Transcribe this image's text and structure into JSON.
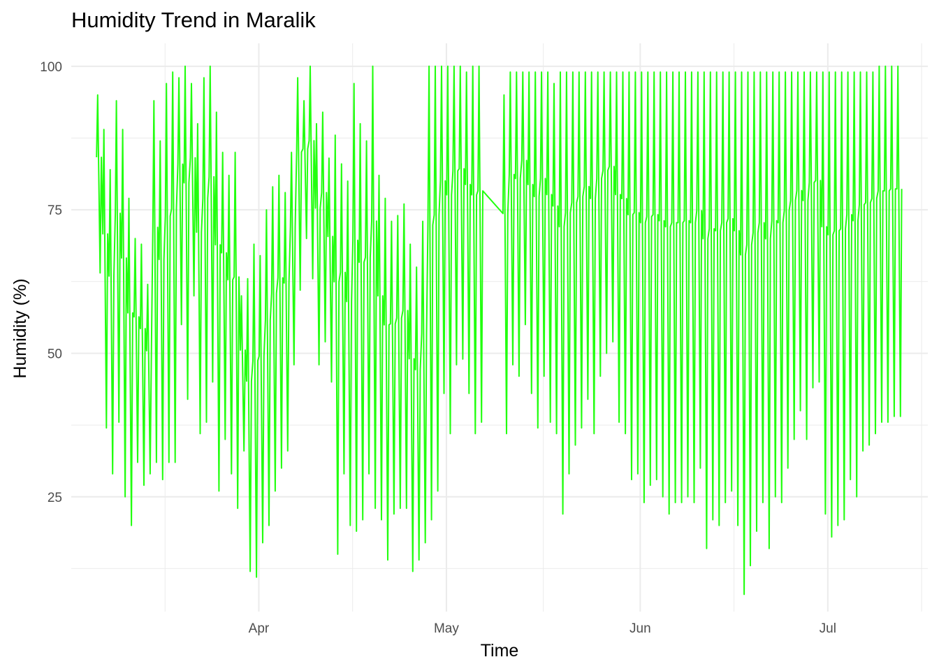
{
  "colors": {
    "line": "#21ff0e",
    "grid": "#ebebeb",
    "tick_text": "#4d4d4d"
  },
  "chart_data": {
    "type": "line",
    "title": "Humidity Trend in Maralik",
    "xlabel": "Time",
    "ylabel": "Humidity (%)",
    "x_range": [
      "2023-03-02",
      "2023-07-17"
    ],
    "ylim": [
      5,
      104
    ],
    "x_ticks": [
      {
        "date": "2023-04-01",
        "label": "Apr"
      },
      {
        "date": "2023-05-01",
        "label": "May"
      },
      {
        "date": "2023-06-01",
        "label": "Jun"
      },
      {
        "date": "2023-07-01",
        "label": "Jul"
      }
    ],
    "y_ticks": [
      25,
      50,
      75,
      100
    ],
    "grid": true,
    "legend": "none",
    "series": [
      {
        "color": "#21ff0e",
        "x": [
          "2023-03-06",
          "2023-03-07",
          "2023-03-08",
          "2023-03-09",
          "2023-03-10",
          "2023-03-11",
          "2023-03-12",
          "2023-03-13",
          "2023-03-14",
          "2023-03-15",
          "2023-03-16",
          "2023-03-17",
          "2023-03-18",
          "2023-03-19",
          "2023-03-20",
          "2023-03-21",
          "2023-03-22",
          "2023-03-23",
          "2023-03-24",
          "2023-03-25",
          "2023-03-26",
          "2023-03-27",
          "2023-03-28",
          "2023-03-29",
          "2023-03-30",
          "2023-03-31",
          "2023-04-01",
          "2023-04-02",
          "2023-04-03",
          "2023-04-04",
          "2023-04-05",
          "2023-04-06",
          "2023-04-07",
          "2023-04-08",
          "2023-04-09",
          "2023-04-10",
          "2023-04-11",
          "2023-04-12",
          "2023-04-13",
          "2023-04-14",
          "2023-04-15",
          "2023-04-16",
          "2023-04-17",
          "2023-04-18",
          "2023-04-19",
          "2023-04-20",
          "2023-04-21",
          "2023-04-22",
          "2023-04-23",
          "2023-04-24",
          "2023-04-25",
          "2023-04-26",
          "2023-04-27",
          "2023-04-28",
          "2023-04-29",
          "2023-04-30",
          "2023-05-01",
          "2023-05-02",
          "2023-05-03",
          "2023-05-04",
          "2023-05-05",
          "2023-05-06",
          "2023-05-10",
          "2023-05-11",
          "2023-05-12",
          "2023-05-13",
          "2023-05-14",
          "2023-05-15",
          "2023-05-16",
          "2023-05-17",
          "2023-05-18",
          "2023-05-19",
          "2023-05-20",
          "2023-05-21",
          "2023-05-22",
          "2023-05-23",
          "2023-05-24",
          "2023-05-25",
          "2023-05-26",
          "2023-05-27",
          "2023-05-28",
          "2023-05-29",
          "2023-05-30",
          "2023-05-31",
          "2023-06-01",
          "2023-06-02",
          "2023-06-03",
          "2023-06-04",
          "2023-06-05",
          "2023-06-06",
          "2023-06-07",
          "2023-06-08",
          "2023-06-09",
          "2023-06-10",
          "2023-06-11",
          "2023-06-12",
          "2023-06-13",
          "2023-06-14",
          "2023-06-15",
          "2023-06-16",
          "2023-06-17",
          "2023-06-18",
          "2023-06-19",
          "2023-06-20",
          "2023-06-21",
          "2023-06-22",
          "2023-06-23",
          "2023-06-24",
          "2023-06-25",
          "2023-06-26",
          "2023-06-27",
          "2023-06-28",
          "2023-06-29",
          "2023-06-30",
          "2023-07-01",
          "2023-07-02",
          "2023-07-03",
          "2023-07-04",
          "2023-07-05",
          "2023-07-06",
          "2023-07-07",
          "2023-07-08",
          "2023-07-09",
          "2023-07-10",
          "2023-07-11",
          "2023-07-12"
        ],
        "max": [
          95,
          89,
          82,
          94,
          89,
          77,
          70,
          69,
          62,
          94,
          87,
          97,
          99,
          98,
          100,
          97,
          90,
          98,
          100,
          92,
          85,
          81,
          85,
          60,
          63,
          69,
          67,
          75,
          79,
          81,
          78,
          85,
          98,
          94,
          100,
          90,
          92,
          84,
          88,
          83,
          80,
          97,
          90,
          87,
          100,
          81,
          77,
          73,
          74,
          76,
          69,
          65,
          73,
          100,
          100,
          100,
          100,
          100,
          100,
          99,
          100,
          100,
          95,
          99,
          99,
          99,
          99,
          99,
          99,
          99,
          97,
          99,
          99,
          99,
          99,
          99,
          99,
          99,
          99,
          99,
          99,
          99,
          99,
          99,
          99,
          99,
          99,
          99,
          99,
          99,
          99,
          99,
          99,
          99,
          99,
          99,
          99,
          99,
          99,
          99,
          99,
          99,
          99,
          99,
          99,
          99,
          99,
          99,
          99,
          99,
          99,
          99,
          99,
          99,
          99,
          99,
          99,
          99,
          99,
          99,
          99,
          99,
          100,
          100,
          100,
          100
        ],
        "min": [
          64,
          37,
          29,
          38,
          25,
          20,
          31,
          27,
          29,
          31,
          28,
          31,
          31,
          55,
          42,
          60,
          36,
          38,
          45,
          26,
          35,
          29,
          23,
          33,
          12,
          11,
          17,
          20,
          26,
          30,
          33,
          48,
          61,
          70,
          63,
          48,
          52,
          45,
          15,
          29,
          20,
          19,
          21,
          29,
          23,
          21,
          14,
          22,
          23,
          23,
          12,
          14,
          17,
          21,
          26,
          43,
          36,
          48,
          49,
          43,
          36,
          38,
          36,
          48,
          46,
          55,
          43,
          37,
          46,
          38,
          36,
          22,
          29,
          34,
          37,
          42,
          36,
          46,
          50,
          52,
          38,
          36,
          28,
          29,
          24,
          27,
          28,
          25,
          22,
          24,
          24,
          25,
          24,
          30,
          16,
          21,
          20,
          24,
          26,
          20,
          8,
          13,
          19,
          24,
          16,
          25,
          24,
          30,
          35,
          40,
          35,
          44,
          45,
          22,
          18,
          20,
          21,
          28,
          25,
          33,
          34,
          36,
          38,
          38,
          39,
          39
        ]
      }
    ]
  }
}
